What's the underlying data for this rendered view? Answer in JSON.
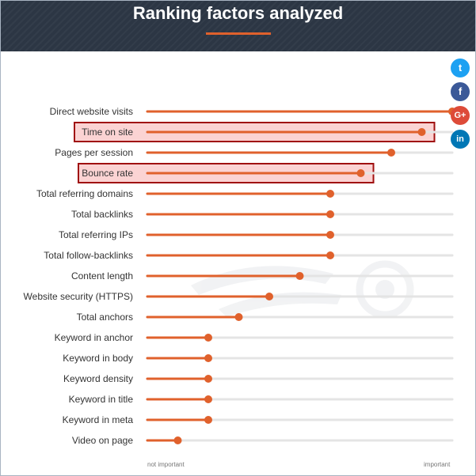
{
  "header": {
    "title": "Ranking factors analyzed"
  },
  "social": {
    "twitter_icon": "t",
    "facebook_icon": "f",
    "google_plus_icon": "G+",
    "linkedin_icon": "in"
  },
  "chart_data": {
    "type": "dot-plot",
    "title": "Ranking factors analyzed",
    "axis": {
      "min_label": "not important",
      "max_label": "important",
      "range": [
        0,
        100
      ]
    },
    "categories": [
      "Direct website visits",
      "Time on site",
      "Pages per session",
      "Bounce rate",
      "Total referring domains",
      "Total backlinks",
      "Total referring IPs",
      "Total follow-backlinks",
      "Content length",
      "Website security (HTTPS)",
      "Total anchors",
      "Keyword in anchor",
      "Keyword in body",
      "Keyword density",
      "Keyword in title",
      "Keyword in meta",
      "Video on page"
    ],
    "values": [
      100,
      90,
      80,
      70,
      60,
      60,
      60,
      60,
      50,
      40,
      30,
      20,
      20,
      20,
      20,
      20,
      10
    ],
    "highlighted": [
      "Time on site",
      "Bounce rate"
    ],
    "colors": {
      "accent": "#e0612c",
      "track": "#e4e4e4",
      "highlight_fill": "#fbd3d3",
      "highlight_border": "#a01010",
      "label": "#333333"
    }
  }
}
